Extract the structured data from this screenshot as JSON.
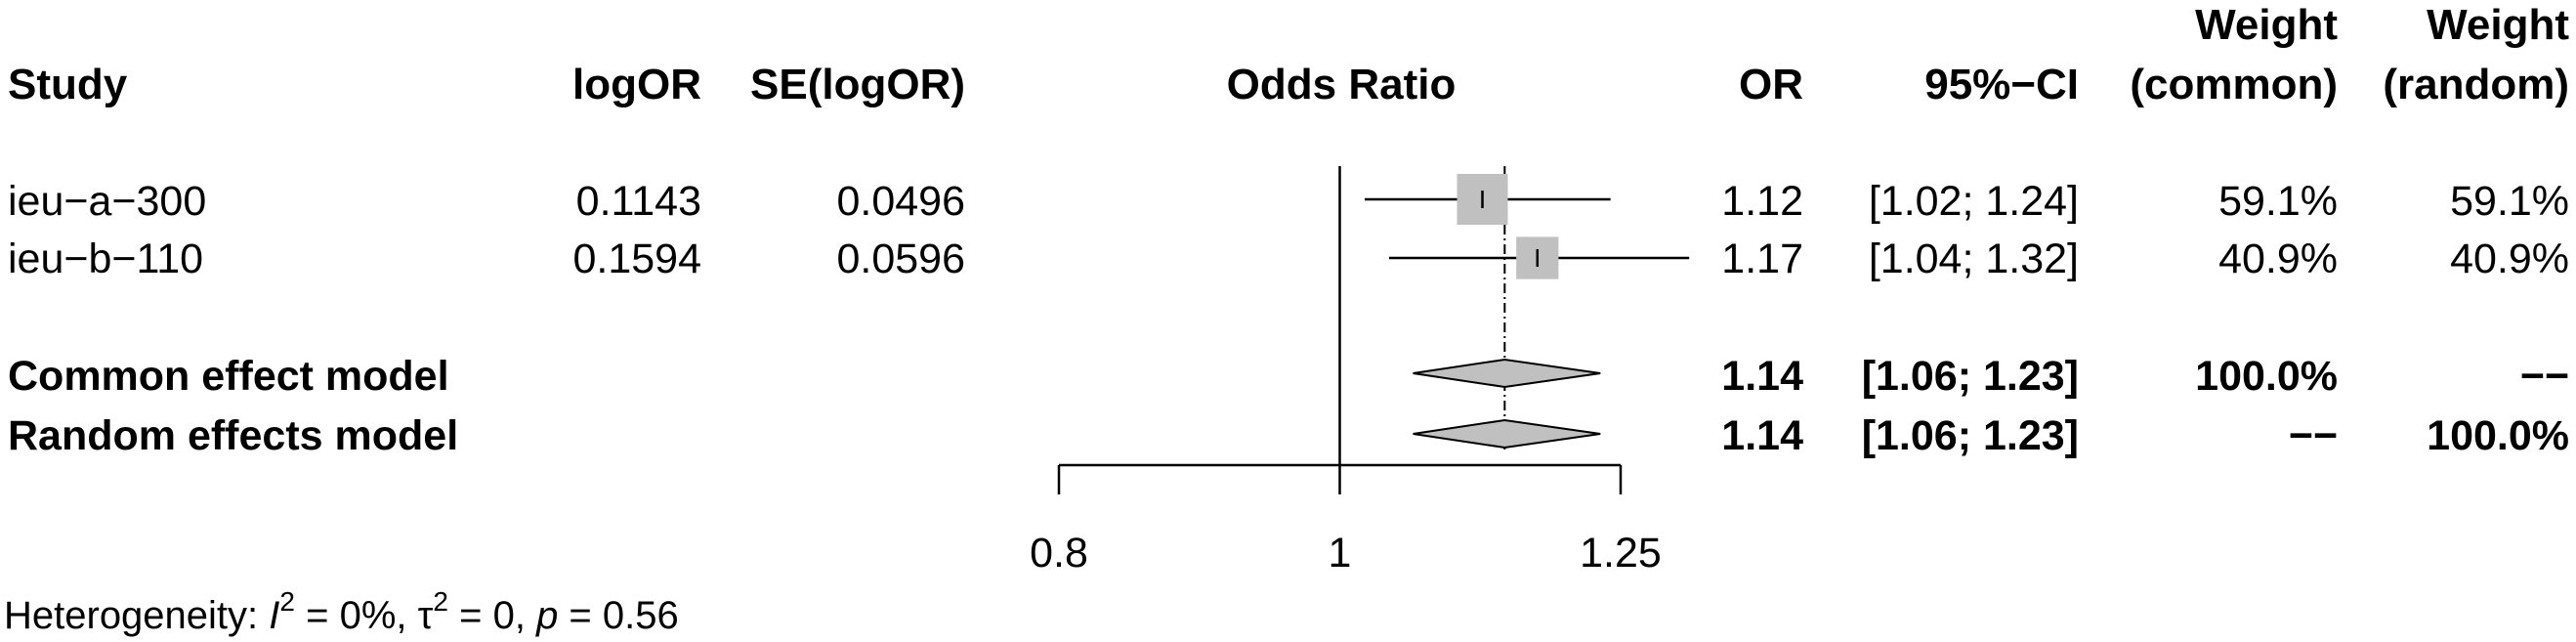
{
  "chart_data": {
    "type": "forest",
    "columns": {
      "study": "Study",
      "logor": "logOR",
      "se": "SE(logOR)",
      "plot": "Odds Ratio",
      "or": "OR",
      "ci": "95%−CI",
      "w_common": [
        "Weight",
        "(common)"
      ],
      "w_random": [
        "Weight",
        "(random)"
      ]
    },
    "studies": [
      {
        "name": "ieu−a−300",
        "logor": "0.1143",
        "se": "0.0496",
        "or": 1.12,
        "ci_low": 1.02,
        "ci_high": 1.24,
        "or_text": "1.12",
        "ci_text": "[1.02; 1.24]",
        "w_common": "59.1%",
        "w_random": "59.1%",
        "weight": 59.1
      },
      {
        "name": "ieu−b−110",
        "logor": "0.1594",
        "se": "0.0596",
        "or": 1.17,
        "ci_low": 1.04,
        "ci_high": 1.32,
        "or_text": "1.17",
        "ci_text": "[1.04; 1.32]",
        "w_common": "40.9%",
        "w_random": "40.9%",
        "weight": 40.9
      }
    ],
    "models": [
      {
        "name": "Common effect model",
        "or": 1.14,
        "ci_low": 1.06,
        "ci_high": 1.23,
        "or_text": "1.14",
        "ci_text": "[1.06; 1.23]",
        "w_common": "100.0%",
        "w_random": "−−"
      },
      {
        "name": "Random effects model",
        "or": 1.14,
        "ci_low": 1.06,
        "ci_high": 1.23,
        "or_text": "1.14",
        "ci_text": "[1.06; 1.23]",
        "w_common": "−−",
        "w_random": "100.0%"
      }
    ],
    "x_axis": {
      "scale": "log",
      "range": [
        0.8,
        1.25
      ],
      "ticks": [
        0.8,
        1,
        1.25
      ],
      "tick_labels": [
        "0.8",
        "1",
        "1.25"
      ],
      "null_line": 1,
      "summary_line": 1.14
    },
    "heterogeneity": {
      "prefix": "Heterogeneity: ",
      "i2_symbol": "I",
      "i2_value": " = 0%, ",
      "tau_symbol": "τ",
      "tau_value": " = 0, ",
      "p_symbol": "p",
      "p_value": " = 0.56",
      "sup": "2"
    }
  }
}
